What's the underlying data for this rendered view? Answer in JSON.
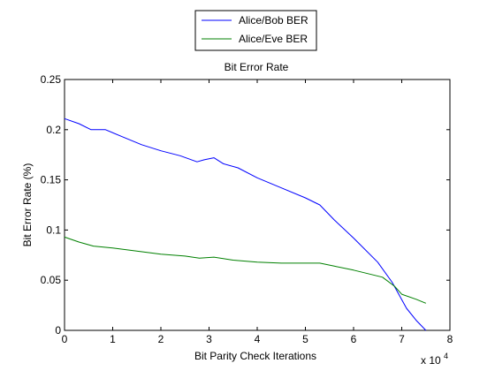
{
  "chart_data": {
    "type": "line",
    "title": "Bit Error Rate",
    "xlabel": "Bit Parity Check Iterations",
    "ylabel": "Bit Error Rate (%)",
    "x_multiplier_label": "x 10",
    "x_multiplier_exponent": "4",
    "xlim": [
      0,
      8
    ],
    "ylim": [
      0,
      0.25
    ],
    "xticks": [
      0,
      1,
      2,
      3,
      4,
      5,
      6,
      7,
      8
    ],
    "xtick_labels": [
      "0",
      "1",
      "2",
      "3",
      "4",
      "5",
      "6",
      "7",
      "8"
    ],
    "yticks": [
      0,
      0.05,
      0.1,
      0.15,
      0.2,
      0.25
    ],
    "ytick_labels": [
      "0",
      "0.05",
      "0.1",
      "0.15",
      "0.2",
      "0.25"
    ],
    "grid": false,
    "legend_position": "top-center-outside",
    "series": [
      {
        "name": "Alice/Bob BER",
        "color": "#0000ff",
        "x": [
          0,
          0.3,
          0.55,
          0.85,
          1.2,
          1.6,
          2.0,
          2.4,
          2.75,
          2.9,
          3.1,
          3.3,
          3.6,
          4.0,
          4.5,
          5.0,
          5.3,
          5.6,
          6.0,
          6.5,
          6.8,
          7.1,
          7.3,
          7.5
        ],
        "y": [
          0.211,
          0.206,
          0.2,
          0.2,
          0.193,
          0.185,
          0.179,
          0.174,
          0.168,
          0.17,
          0.172,
          0.166,
          0.162,
          0.152,
          0.142,
          0.132,
          0.125,
          0.11,
          0.092,
          0.068,
          0.048,
          0.022,
          0.01,
          -0.002
        ]
      },
      {
        "name": "Alice/Eve BER",
        "color": "#008000",
        "x": [
          0,
          0.3,
          0.6,
          1.0,
          1.5,
          2.0,
          2.5,
          2.8,
          3.1,
          3.5,
          4.0,
          4.5,
          5.0,
          5.3,
          5.6,
          6.0,
          6.6,
          6.85,
          7.0,
          7.3,
          7.5
        ],
        "y": [
          0.093,
          0.088,
          0.084,
          0.082,
          0.079,
          0.076,
          0.074,
          0.072,
          0.073,
          0.07,
          0.068,
          0.067,
          0.067,
          0.067,
          0.064,
          0.06,
          0.053,
          0.044,
          0.036,
          0.031,
          0.027
        ]
      }
    ]
  }
}
